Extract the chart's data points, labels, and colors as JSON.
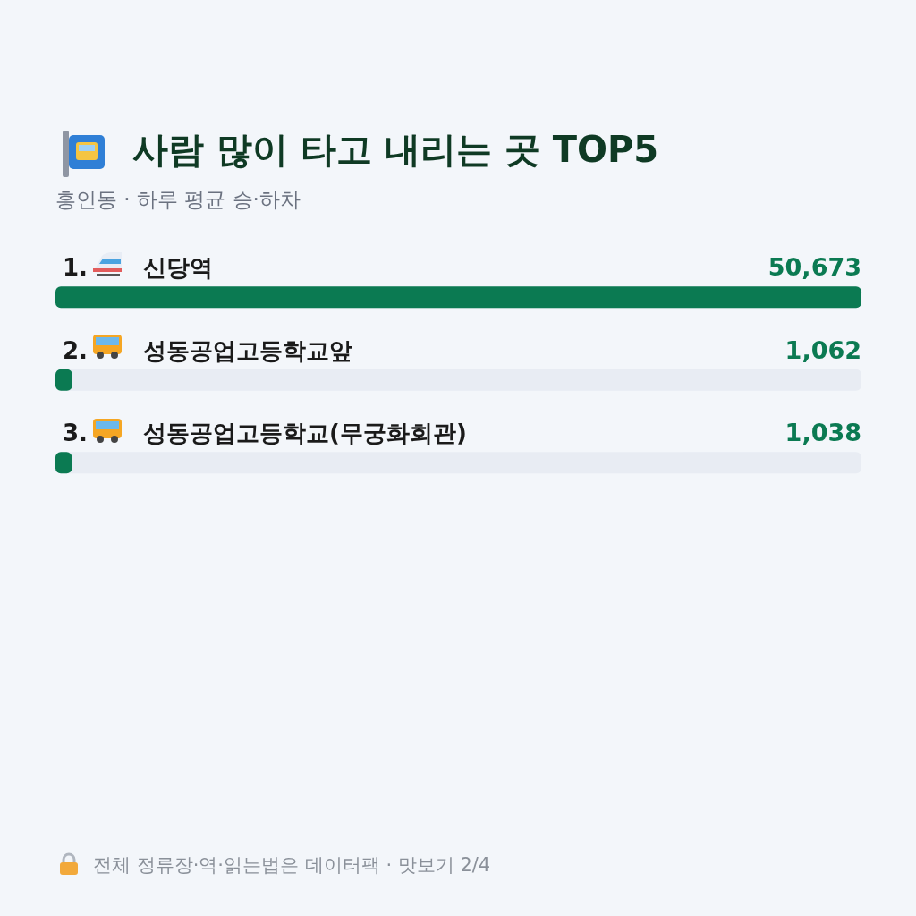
{
  "chart_data": {
    "type": "bar",
    "orientation": "horizontal",
    "title": "사람 많이 타고 내리는 곳 TOP5",
    "subtitle": "흥인동 · 하루 평균 승·하차",
    "categories": [
      "1. 신당역",
      "2. 성동공업고등학교앞",
      "3. 성동공업고등학교(무궁화회관)"
    ],
    "values": [
      50673,
      1062,
      1038
    ],
    "color": "#0b7a52",
    "value_labels": [
      "50,673",
      "1,062",
      "1,038"
    ],
    "annotations": [
      "전체 정류장·역·읽는법은 데이터팩 · 맛보기 2/4"
    ]
  }
}
